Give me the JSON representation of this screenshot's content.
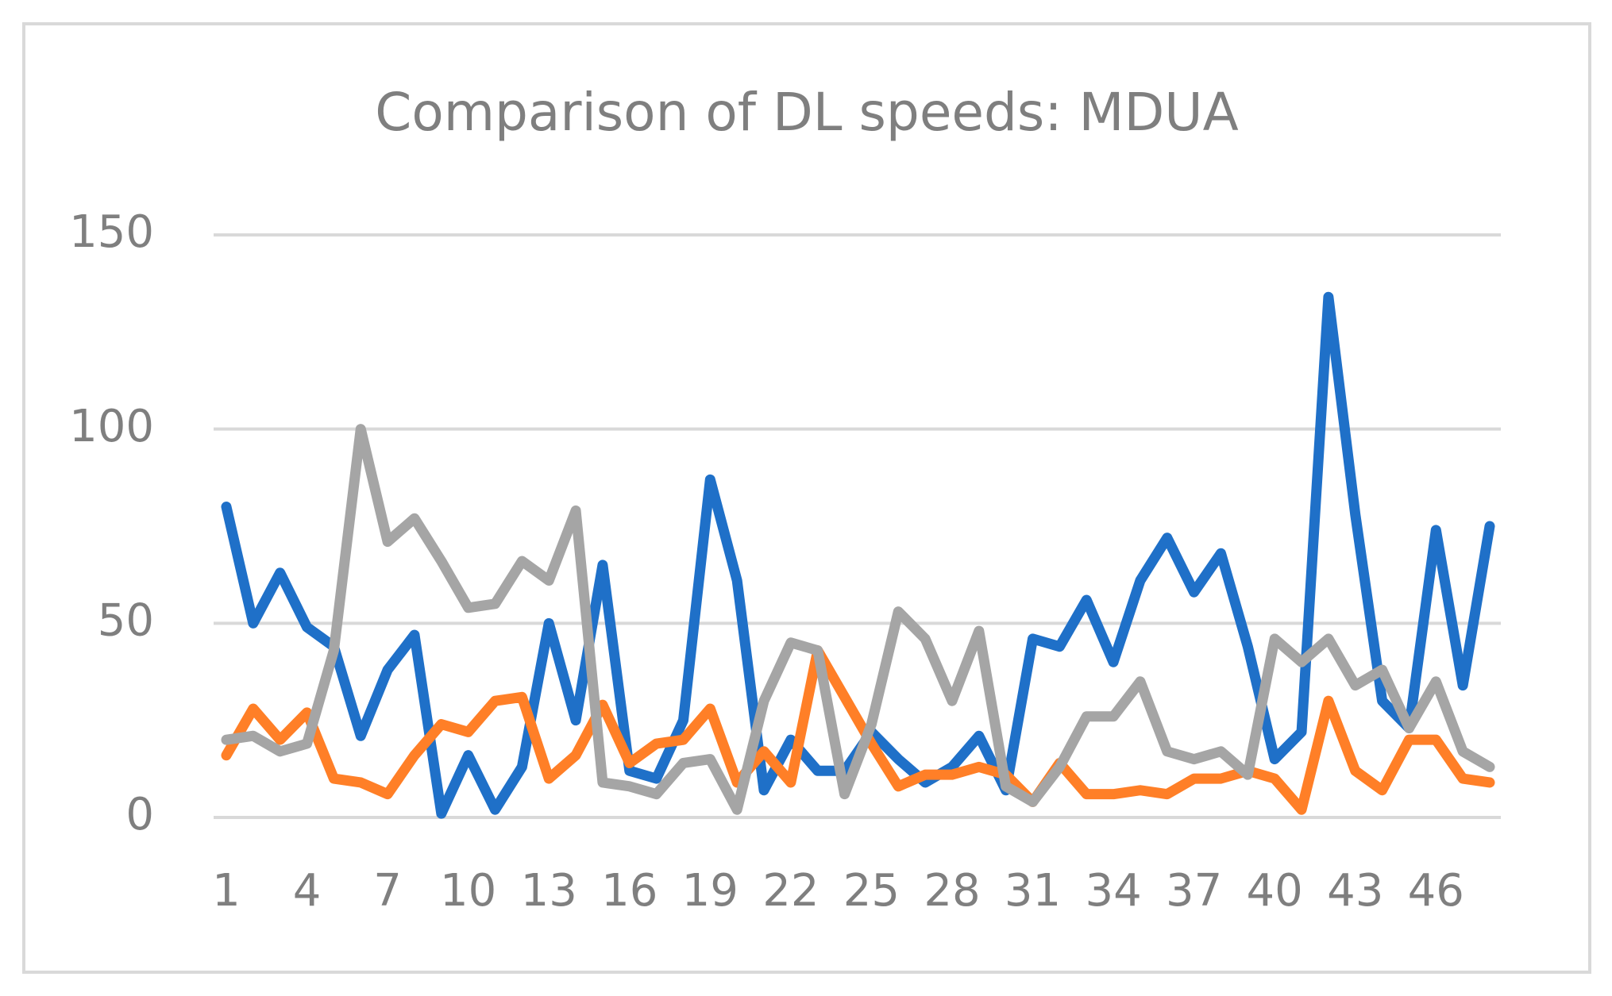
{
  "chart_data": {
    "type": "line",
    "title": "Comparison of DL speeds: MDUA",
    "categories": [
      1,
      null,
      null,
      4,
      null,
      null,
      7,
      null,
      null,
      10,
      null,
      null,
      13,
      null,
      null,
      16,
      null,
      null,
      19,
      null,
      null,
      22,
      null,
      null,
      25,
      null,
      null,
      28,
      null,
      null,
      31,
      null,
      null,
      34,
      null,
      null,
      37,
      null,
      null,
      40,
      null,
      null,
      43,
      null,
      null,
      46,
      null,
      null
    ],
    "series": [
      {
        "color": "#1f70c8",
        "values": [
          80,
          50,
          63,
          49,
          44,
          21,
          38,
          47,
          1,
          16,
          2,
          13,
          50,
          25,
          65,
          12,
          10,
          25,
          87,
          61,
          7,
          20,
          12,
          12,
          22,
          15,
          9,
          13,
          21,
          7,
          46,
          44,
          56,
          40,
          61,
          72,
          58,
          68,
          44,
          15,
          22,
          134,
          78,
          30,
          23,
          74,
          34,
          75
        ]
      },
      {
        "color": "#ff7f27",
        "values": [
          16,
          28,
          20,
          27,
          10,
          9,
          6,
          16,
          24,
          22,
          30,
          31,
          10,
          16,
          29,
          14,
          19,
          20,
          28,
          9,
          17,
          9,
          43,
          31,
          19,
          8,
          11,
          11,
          13,
          11,
          4,
          14,
          6,
          6,
          7,
          6,
          10,
          10,
          12,
          10,
          2,
          30,
          12,
          7,
          20,
          20,
          10,
          9
        ]
      },
      {
        "color": "#a5a5a5",
        "values": [
          20,
          21,
          17,
          19,
          43,
          100,
          71,
          77,
          66,
          54,
          55,
          66,
          61,
          79,
          9,
          8,
          6,
          14,
          15,
          2,
          30,
          45,
          43,
          6,
          24,
          53,
          46,
          30,
          48,
          8,
          4,
          13,
          26,
          26,
          35,
          17,
          15,
          17,
          11,
          46,
          40,
          46,
          34,
          38,
          23,
          35,
          17,
          13
        ]
      }
    ],
    "ylim": [
      0,
      150
    ],
    "yticks": [
      0,
      50,
      100,
      150
    ],
    "grid": true
  }
}
